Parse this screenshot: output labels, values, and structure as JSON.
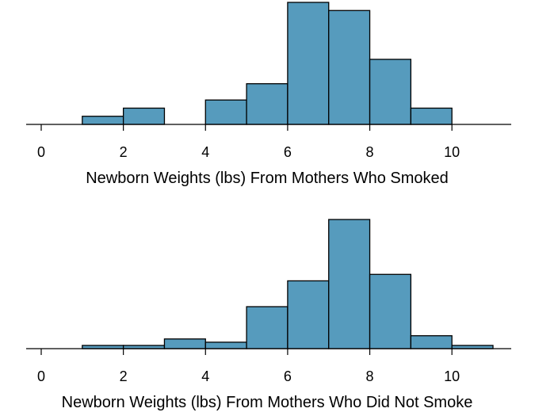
{
  "chart_data": [
    {
      "type": "bar",
      "subtype": "histogram",
      "xlabel": "Newborn Weights (lbs) From Mothers Who Smoked",
      "ylabel": "",
      "y_axis_shown": false,
      "grid": false,
      "xlim": [
        0,
        11
      ],
      "xticks": [
        0,
        2,
        4,
        6,
        8,
        10
      ],
      "xtick_labels": [
        "0",
        "2",
        "4",
        "6",
        "8",
        "10"
      ],
      "bin_edges": [
        0,
        1,
        2,
        3,
        4,
        5,
        6,
        7,
        8,
        9,
        10,
        11
      ],
      "values": [
        0,
        1,
        2,
        0,
        3,
        5,
        15,
        14,
        8,
        2,
        0
      ],
      "ylim": [
        0,
        15
      ],
      "bar_color": "#569BBD"
    },
    {
      "type": "bar",
      "subtype": "histogram",
      "xlabel": "Newborn Weights (lbs) From Mothers Who Did Not Smoke",
      "ylabel": "",
      "y_axis_shown": false,
      "grid": false,
      "xlim": [
        0,
        11
      ],
      "xticks": [
        0,
        2,
        4,
        6,
        8,
        10
      ],
      "xtick_labels": [
        "0",
        "2",
        "4",
        "6",
        "8",
        "10"
      ],
      "bin_edges": [
        0,
        1,
        2,
        3,
        4,
        5,
        6,
        7,
        8,
        9,
        10,
        11
      ],
      "values": [
        0,
        1,
        1,
        3,
        2,
        13,
        21,
        40,
        23,
        4,
        1
      ],
      "ylim": [
        0,
        40
      ],
      "bar_color": "#569BBD"
    }
  ]
}
